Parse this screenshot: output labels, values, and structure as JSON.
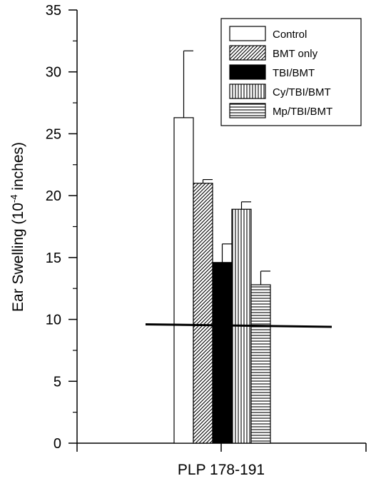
{
  "chart_data": {
    "type": "bar",
    "ylabel": "Ear Swelling (10",
    "ylabel_sup": "-4",
    "ylabel_tail": " inches)",
    "xlabel": "PLP 178-191",
    "ylim": [
      0,
      35
    ],
    "yticks": [
      0,
      5,
      10,
      15,
      20,
      25,
      30,
      35
    ],
    "ytick_labels": [
      "0",
      "5",
      "10",
      "15",
      "20",
      "25",
      "30",
      "35"
    ],
    "legend_position": "top-right",
    "reference_line": {
      "y_start": 9.6,
      "y_end": 9.4
    },
    "series": [
      {
        "name": "Control",
        "value": 26.3,
        "error": 5.4,
        "pattern": "white"
      },
      {
        "name": "BMT only",
        "value": 21.0,
        "error": 0.3,
        "pattern": "diagonal"
      },
      {
        "name": "TBI/BMT",
        "value": 14.6,
        "error": 1.5,
        "pattern": "black"
      },
      {
        "name": "Cy/TBI/BMT",
        "value": 18.9,
        "error": 0.6,
        "pattern": "vertical"
      },
      {
        "name": "Mp/TBI/BMT",
        "value": 12.8,
        "error": 1.1,
        "pattern": "horizontal"
      }
    ]
  }
}
